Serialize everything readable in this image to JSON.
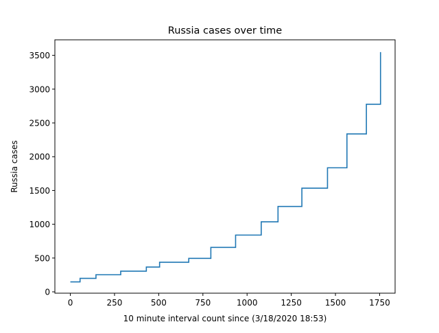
{
  "chart_data": {
    "type": "line",
    "title": "Russia cases over time",
    "xlabel": "10 minute interval count since (3/18/2020 18:53)",
    "ylabel": "Russia cases",
    "xlim": [
      -87.5,
      1837.5
    ],
    "ylim": [
      -20,
      3730
    ],
    "xticks": [
      0,
      250,
      500,
      750,
      1000,
      1250,
      1500,
      1750
    ],
    "yticks": [
      0,
      500,
      1000,
      1500,
      2000,
      2500,
      3000,
      3500
    ],
    "grid": false,
    "legend": "none",
    "series": [
      {
        "step": true,
        "color": "#1f77b4",
        "x": [
          0,
          55,
          145,
          285,
          430,
          505,
          670,
          795,
          935,
          1080,
          1175,
          1310,
          1455,
          1565,
          1675,
          1755
        ],
        "y": [
          147,
          199,
          253,
          306,
          367,
          438,
          495,
          658,
          840,
          1036,
          1264,
          1534,
          1836,
          2337,
          2777,
          3548
        ]
      }
    ]
  }
}
